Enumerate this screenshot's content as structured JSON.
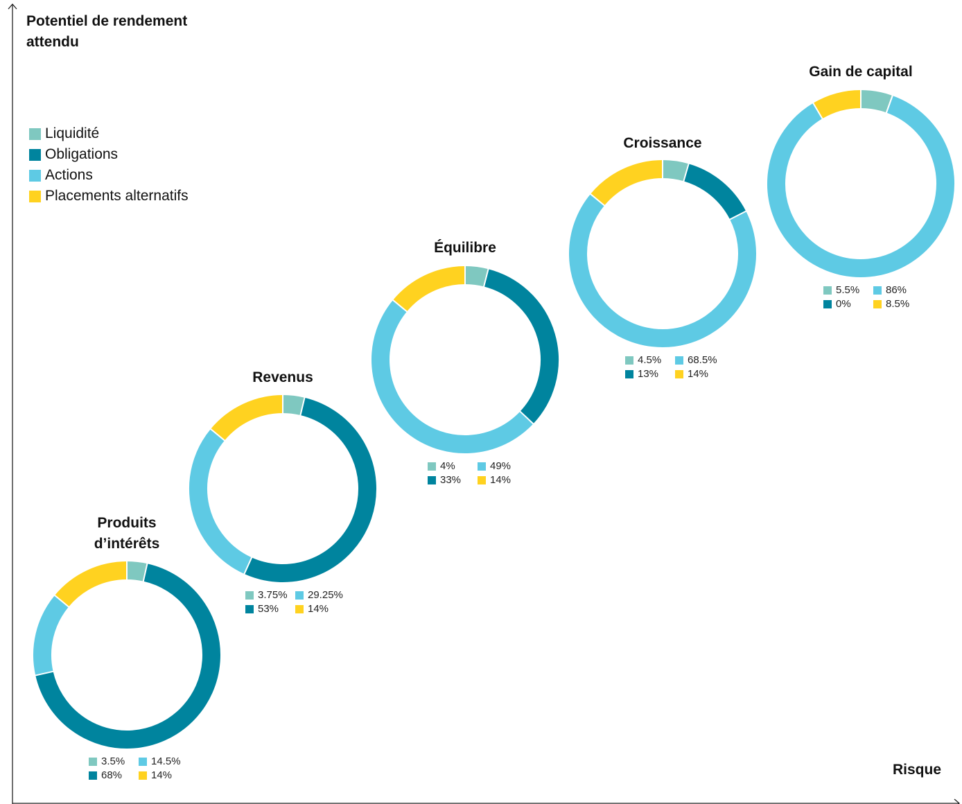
{
  "colors": {
    "liquidite": "#7fc8c0",
    "obligations": "#00849e",
    "actions": "#5ecae4",
    "alternatifs": "#ffd220"
  },
  "chart_data": {
    "type": "donut",
    "ylabel": "Potentiel de rendement attendu",
    "xlabel": "Risque",
    "legend_position": "top-left",
    "legend": [
      {
        "name": "Liquidité",
        "color_key": "liquidite"
      },
      {
        "name": "Obligations",
        "color_key": "obligations"
      },
      {
        "name": "Actions",
        "color_key": "actions"
      },
      {
        "name": "Placements alternatifs",
        "color_key": "alternatifs"
      }
    ],
    "portfolios": [
      {
        "title": "Produits d’intérêts",
        "values": {
          "liquidite": 3.5,
          "obligations": 68,
          "actions": 14.5,
          "alternatifs": 14
        },
        "labels": {
          "liquidite": "3.5%",
          "obligations": "68%",
          "actions": "14.5%",
          "alternatifs": "14%"
        }
      },
      {
        "title": "Revenus",
        "values": {
          "liquidite": 3.75,
          "obligations": 53,
          "actions": 29.25,
          "alternatifs": 14
        },
        "labels": {
          "liquidite": "3.75%",
          "obligations": "53%",
          "actions": "29.25%",
          "alternatifs": "14%"
        }
      },
      {
        "title": "Équilibre",
        "values": {
          "liquidite": 4,
          "obligations": 33,
          "actions": 49,
          "alternatifs": 14
        },
        "labels": {
          "liquidite": "4%",
          "obligations": "33%",
          "actions": "49%",
          "alternatifs": "14%"
        }
      },
      {
        "title": "Croissance",
        "values": {
          "liquidite": 4.5,
          "obligations": 13,
          "actions": 68.5,
          "alternatifs": 14
        },
        "labels": {
          "liquidite": "4.5%",
          "obligations": "13%",
          "actions": "68.5%",
          "alternatifs": "14%"
        }
      },
      {
        "title": "Gain de capital",
        "values": {
          "liquidite": 5.5,
          "obligations": 0,
          "actions": 86,
          "alternatifs": 8.5
        },
        "labels": {
          "liquidite": "5.5%",
          "obligations": "0%",
          "actions": "86%",
          "alternatifs": "8.5%"
        }
      }
    ]
  }
}
